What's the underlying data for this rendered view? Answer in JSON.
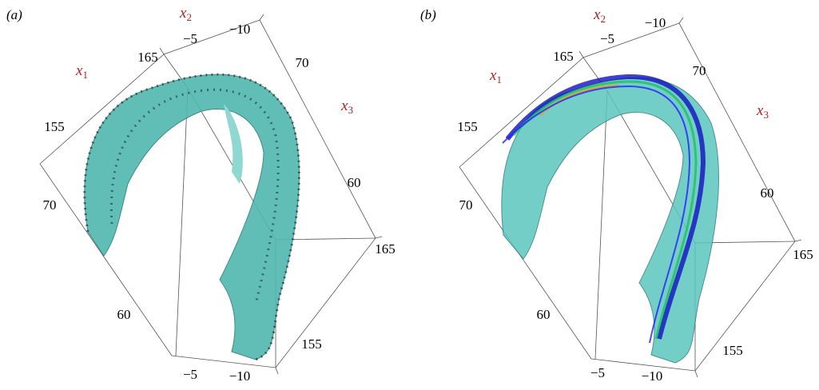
{
  "panels": [
    {
      "label": "(a)",
      "axis_labels": [
        {
          "letter": "x",
          "sub": "1"
        },
        {
          "letter": "x",
          "sub": "2"
        },
        {
          "letter": "x",
          "sub": "3"
        }
      ],
      "tick_labels": [
        "−10",
        "−5",
        "165",
        "155",
        "70",
        "60",
        "70",
        "60",
        "165",
        "155",
        "−5",
        "−10"
      ]
    },
    {
      "label": "(b)",
      "axis_labels": [
        {
          "letter": "x",
          "sub": "1"
        },
        {
          "letter": "x",
          "sub": "2"
        },
        {
          "letter": "x",
          "sub": "3"
        }
      ],
      "tick_labels": [
        "−10",
        "−5",
        "165",
        "155",
        "70",
        "60",
        "70",
        "60",
        "165",
        "155",
        "−5",
        "−10"
      ]
    }
  ]
}
